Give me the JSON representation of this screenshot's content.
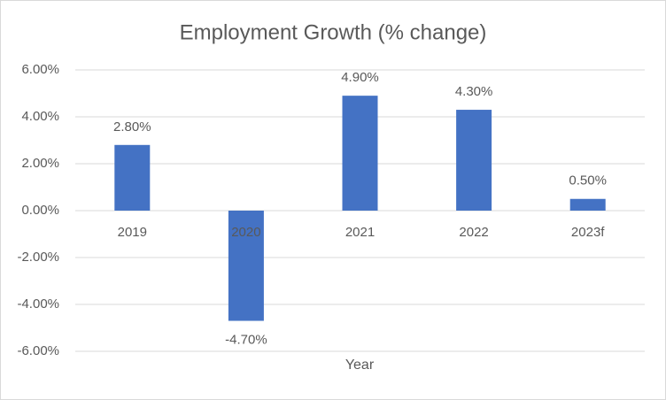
{
  "chart_data": {
    "type": "bar",
    "title": "Employment Growth (% change)",
    "x_label": "Year",
    "categories": [
      "2019",
      "2020",
      "2021",
      "2022",
      "2023f"
    ],
    "values": [
      2.8,
      -4.7,
      4.9,
      4.3,
      0.5
    ],
    "value_labels": [
      "2.80%",
      "-4.70%",
      "4.90%",
      "4.30%",
      "0.50%"
    ],
    "color": "#4472c4",
    "ylim": [
      -6,
      6
    ],
    "yticks": [
      {
        "value": -6,
        "label": "-6.00%"
      },
      {
        "value": -4,
        "label": "-4.00%"
      },
      {
        "value": -2,
        "label": "-2.00%"
      },
      {
        "value": 0,
        "label": "0.00%"
      },
      {
        "value": 2,
        "label": "2.00%"
      },
      {
        "value": 4,
        "label": "4.00%"
      },
      {
        "value": 6,
        "label": "6.00%"
      }
    ],
    "grid": true
  }
}
